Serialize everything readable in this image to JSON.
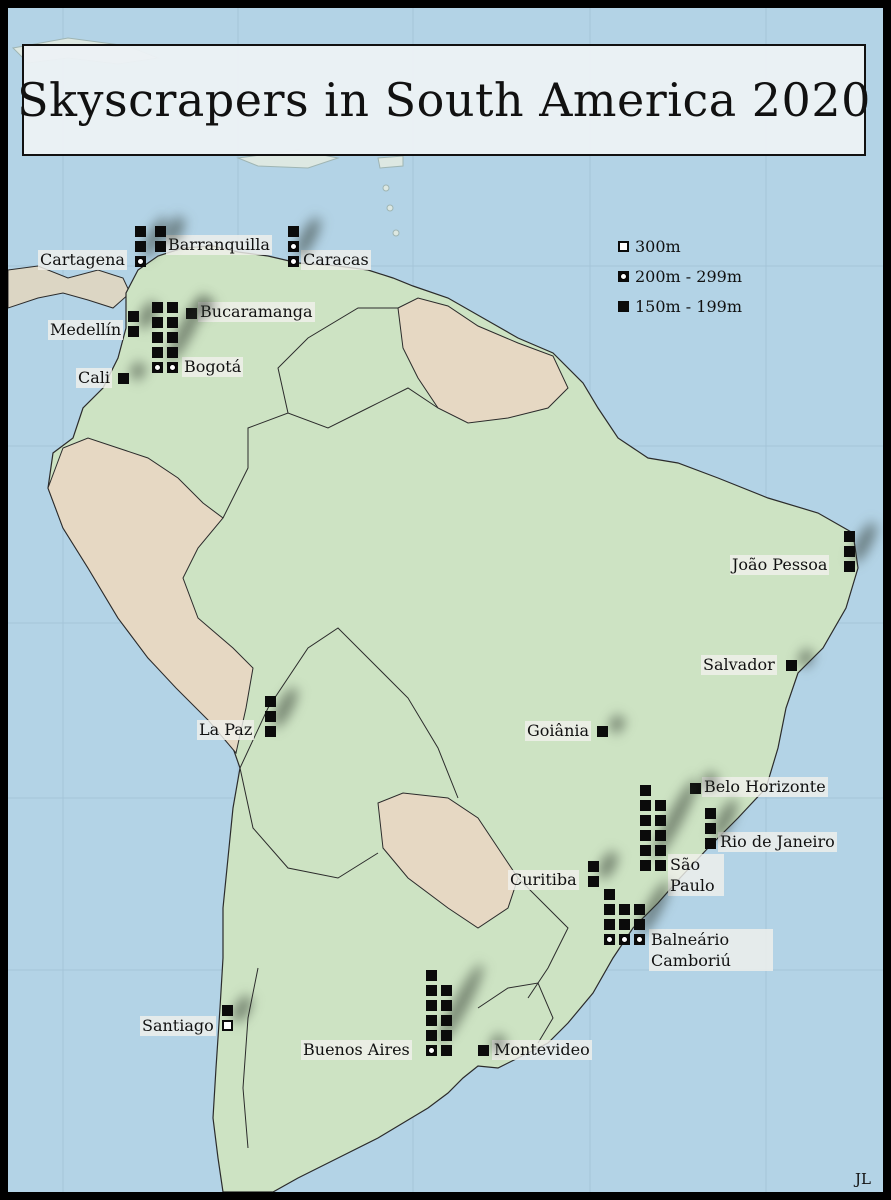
{
  "title": "Skyscrapers in South America 2020",
  "signature": "JL",
  "legend": [
    {
      "type": "300",
      "label": "300m"
    },
    {
      "type": "200",
      "label": "200m - 299m"
    },
    {
      "type": "150",
      "label": "150m - 199m"
    }
  ],
  "colors": {
    "ocean": "#b3d3e6",
    "land_highlight": "#cde3c3",
    "land_other": "#e6d8c3",
    "border": "#2b2b2b",
    "marker": "#0b0b0b"
  },
  "cities": [
    {
      "name": "Cartagena",
      "count_150": 2,
      "count_200": 1,
      "count_300": 0
    },
    {
      "name": "Barranquilla",
      "count_150": 2,
      "count_200": 0,
      "count_300": 0
    },
    {
      "name": "Caracas",
      "count_150": 1,
      "count_200": 2,
      "count_300": 0
    },
    {
      "name": "Bucaramanga",
      "count_150": 1,
      "count_200": 0,
      "count_300": 0
    },
    {
      "name": "Medellín",
      "count_150": 2,
      "count_200": 0,
      "count_300": 0
    },
    {
      "name": "Bogotá",
      "count_150": 8,
      "count_200": 2,
      "count_300": 0
    },
    {
      "name": "Cali",
      "count_150": 1,
      "count_200": 0,
      "count_300": 0
    },
    {
      "name": "João Pessoa",
      "count_150": 3,
      "count_200": 0,
      "count_300": 0
    },
    {
      "name": "Salvador",
      "count_150": 1,
      "count_200": 0,
      "count_300": 0
    },
    {
      "name": "La Paz",
      "count_150": 3,
      "count_200": 0,
      "count_300": 0
    },
    {
      "name": "Goiânia",
      "count_150": 1,
      "count_200": 0,
      "count_300": 0
    },
    {
      "name": "Belo Horizonte",
      "count_150": 1,
      "count_200": 0,
      "count_300": 0
    },
    {
      "name": "Rio de Janeiro",
      "count_150": 3,
      "count_200": 0,
      "count_300": 0
    },
    {
      "name": "São Paulo",
      "count_150": 11,
      "count_200": 0,
      "count_300": 0
    },
    {
      "name": "Curitiba",
      "count_150": 2,
      "count_200": 0,
      "count_300": 0
    },
    {
      "name": "Balneário Camboriú",
      "count_150": 7,
      "count_200": 3,
      "count_300": 0
    },
    {
      "name": "Santiago",
      "count_150": 1,
      "count_200": 0,
      "count_300": 1
    },
    {
      "name": "Buenos Aires",
      "count_150": 10,
      "count_200": 1,
      "count_300": 0
    },
    {
      "name": "Montevideo",
      "count_150": 1,
      "count_200": 0,
      "count_300": 0
    }
  ]
}
